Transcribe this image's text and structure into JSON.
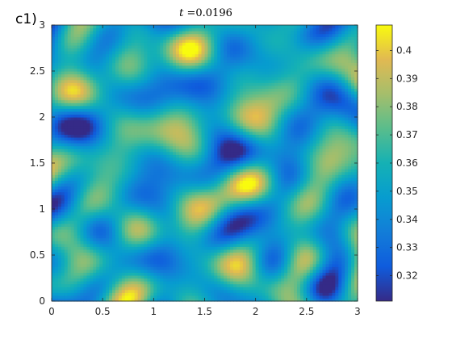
{
  "panel_label": "c1)",
  "title_var": "t",
  "title_rest": " =0.0196",
  "chart_data": {
    "type": "heatmap",
    "title": "t =0.0196",
    "xlabel": "",
    "ylabel": "",
    "xlim": [
      0,
      3
    ],
    "ylim": [
      0,
      3
    ],
    "xticks": [
      "0",
      "0.5",
      "1",
      "1.5",
      "2",
      "2.5",
      "3"
    ],
    "yticks": [
      "0",
      "0.5",
      "1",
      "1.5",
      "2",
      "2.5",
      "3"
    ],
    "colorbar": {
      "range": [
        0.311,
        0.409
      ],
      "ticks": [
        "0.32",
        "0.33",
        "0.34",
        "0.35",
        "0.36",
        "0.37",
        "0.38",
        "0.39",
        "0.4"
      ],
      "colormap": "parula"
    },
    "grid": false
  }
}
